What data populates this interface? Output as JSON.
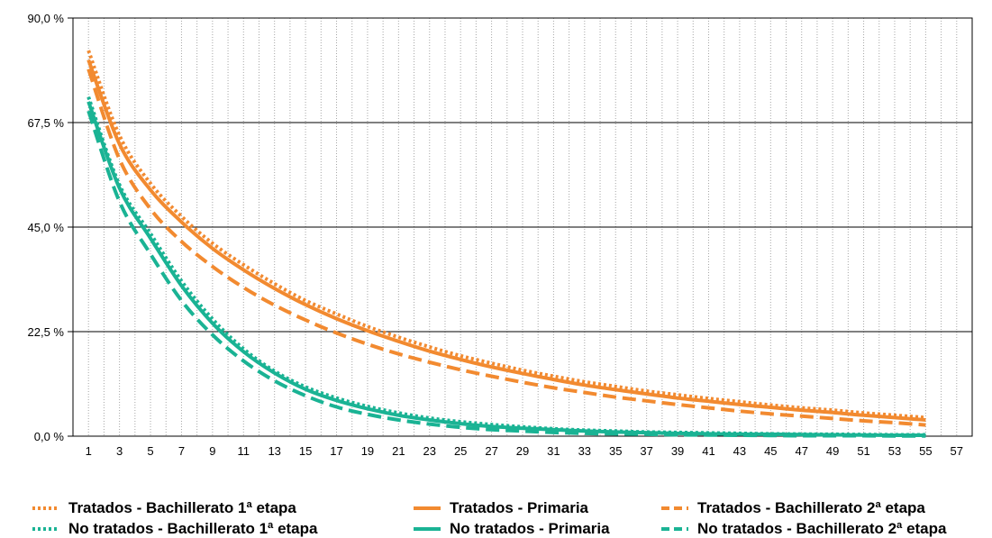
{
  "chart_data": {
    "type": "line",
    "title": "",
    "xlabel": "",
    "ylabel": "",
    "ylim": [
      0,
      90
    ],
    "xlim": [
      0,
      58
    ],
    "y_ticks": [
      "0,0 %",
      "22,5 %",
      "45,0 %",
      "67,5 %",
      "90,0 %"
    ],
    "x_ticks": [
      "1",
      "3",
      "5",
      "7",
      "9",
      "11",
      "13",
      "15",
      "17",
      "19",
      "21",
      "23",
      "25",
      "27",
      "29",
      "31",
      "33",
      "35",
      "37",
      "39",
      "41",
      "43",
      "45",
      "47",
      "49",
      "51",
      "53",
      "55",
      "57"
    ],
    "grid": "horizontal major lines with dotted vertical minor lines",
    "legend_position": "bottom",
    "x": [
      1,
      3,
      5,
      7,
      9,
      11,
      13,
      15,
      17,
      19,
      21,
      23,
      25,
      27,
      29,
      31,
      33,
      35,
      37,
      39,
      41,
      43,
      45,
      47,
      49,
      51,
      53,
      55
    ],
    "series": [
      {
        "name": "Tratados - Bachillerato 1ª etapa",
        "color": "#f28a30",
        "style": "dotted",
        "values": [
          83,
          64.7,
          54.4,
          47.3,
          41.5,
          36.9,
          32.8,
          29.2,
          26.3,
          23.6,
          21.3,
          19.2,
          17.3,
          15.7,
          14.2,
          12.9,
          11.7,
          10.7,
          9.7,
          8.9,
          8.1,
          7.4,
          6.7,
          6.1,
          5.6,
          5.0,
          4.5,
          4.0
        ]
      },
      {
        "name": "Tratados - Primaria",
        "color": "#f28a30",
        "style": "solid",
        "values": [
          81,
          62.9,
          53.0,
          46.1,
          40.4,
          35.8,
          31.8,
          28.3,
          25.3,
          22.7,
          20.4,
          18.3,
          16.5,
          14.9,
          13.5,
          12.2,
          11.0,
          10.0,
          9.1,
          8.2,
          7.5,
          6.8,
          6.2,
          5.6,
          5.1,
          4.5,
          4.0,
          3.5
        ]
      },
      {
        "name": "Tratados - Bachillerato 2ª etapa",
        "color": "#f28a30",
        "style": "dashed",
        "values": [
          79,
          59.6,
          48.9,
          41.9,
          36.5,
          32.0,
          28.2,
          25.0,
          22.2,
          19.8,
          17.7,
          15.9,
          14.3,
          12.9,
          11.6,
          10.4,
          9.4,
          8.4,
          7.6,
          6.8,
          6.1,
          5.4,
          4.8,
          4.3,
          3.8,
          3.3,
          2.9,
          2.4
        ]
      },
      {
        "name": "No tratados - Bachillerato 1ª etapa",
        "color": "#1ab394",
        "style": "dotted",
        "values": [
          73,
          54.1,
          43.6,
          33.4,
          25.2,
          18.8,
          14.0,
          10.6,
          8.2,
          6.4,
          5.0,
          3.9,
          3.1,
          2.5,
          2.0,
          1.6,
          1.3,
          1.1,
          0.9,
          0.8,
          0.7,
          0.6,
          0.5,
          0.45,
          0.4,
          0.35,
          0.3,
          0.3
        ]
      },
      {
        "name": "No tratados - Primaria",
        "color": "#1ab394",
        "style": "solid",
        "values": [
          72,
          53.4,
          42.6,
          32.4,
          24.3,
          18.2,
          13.6,
          10.1,
          7.7,
          5.9,
          4.5,
          3.5,
          2.7,
          2.1,
          1.7,
          1.4,
          1.1,
          0.9,
          0.75,
          0.6,
          0.5,
          0.45,
          0.4,
          0.35,
          0.3,
          0.25,
          0.2,
          0.2
        ]
      },
      {
        "name": "No tratados - Bachillerato 2ª etapa",
        "color": "#1ab394",
        "style": "dashed",
        "values": [
          70,
          50.5,
          39.2,
          29.2,
          21.8,
          16.2,
          11.9,
          8.7,
          6.3,
          4.7,
          3.5,
          2.6,
          1.9,
          1.4,
          1.1,
          0.8,
          0.6,
          0.5,
          0.4,
          0.3,
          0.25,
          0.2,
          0.15,
          0.1,
          0.1,
          0.1,
          0.05,
          0.05
        ]
      }
    ]
  }
}
